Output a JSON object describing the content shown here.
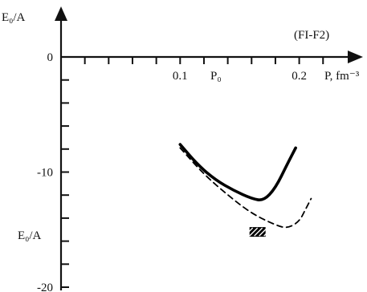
{
  "chart_data": {
    "type": "line",
    "annotation": "(FI-F2)",
    "ylabel_top": "E₀/A",
    "ylabel_side": "E₀/A",
    "xlabel": "P, fm⁻³",
    "x_ticks": [
      {
        "value": 0.1,
        "label": "0.1"
      },
      {
        "value": 0.13,
        "label": "P₀"
      },
      {
        "value": 0.2,
        "label": "0.2"
      }
    ],
    "y_ticks": [
      {
        "value": 0,
        "label": "0"
      },
      {
        "value": -10,
        "label": "-10"
      },
      {
        "value": -20,
        "label": "-20"
      }
    ],
    "xlim": [
      0,
      0.24
    ],
    "ylim": [
      -20,
      2
    ],
    "series": [
      {
        "style": "solid",
        "color": "#000000",
        "points": [
          [
            0.1,
            -7.6
          ],
          [
            0.115,
            -9.4
          ],
          [
            0.13,
            -10.7
          ],
          [
            0.145,
            -11.6
          ],
          [
            0.16,
            -12.3
          ],
          [
            0.17,
            -12.5
          ],
          [
            0.18,
            -11.4
          ],
          [
            0.19,
            -9.3
          ],
          [
            0.197,
            -7.9
          ]
        ]
      },
      {
        "style": "dashed",
        "color": "#000000",
        "points": [
          [
            0.1,
            -7.9
          ],
          [
            0.12,
            -10.2
          ],
          [
            0.14,
            -12.0
          ],
          [
            0.16,
            -13.6
          ],
          [
            0.18,
            -14.6
          ],
          [
            0.19,
            -14.9
          ],
          [
            0.2,
            -14.3
          ],
          [
            0.205,
            -13.3
          ],
          [
            0.21,
            -12.3
          ]
        ]
      }
    ],
    "marker": {
      "x": 0.165,
      "y": -15.2,
      "shape": "hatched-rectangle",
      "color": "#000000"
    },
    "grid": false
  }
}
